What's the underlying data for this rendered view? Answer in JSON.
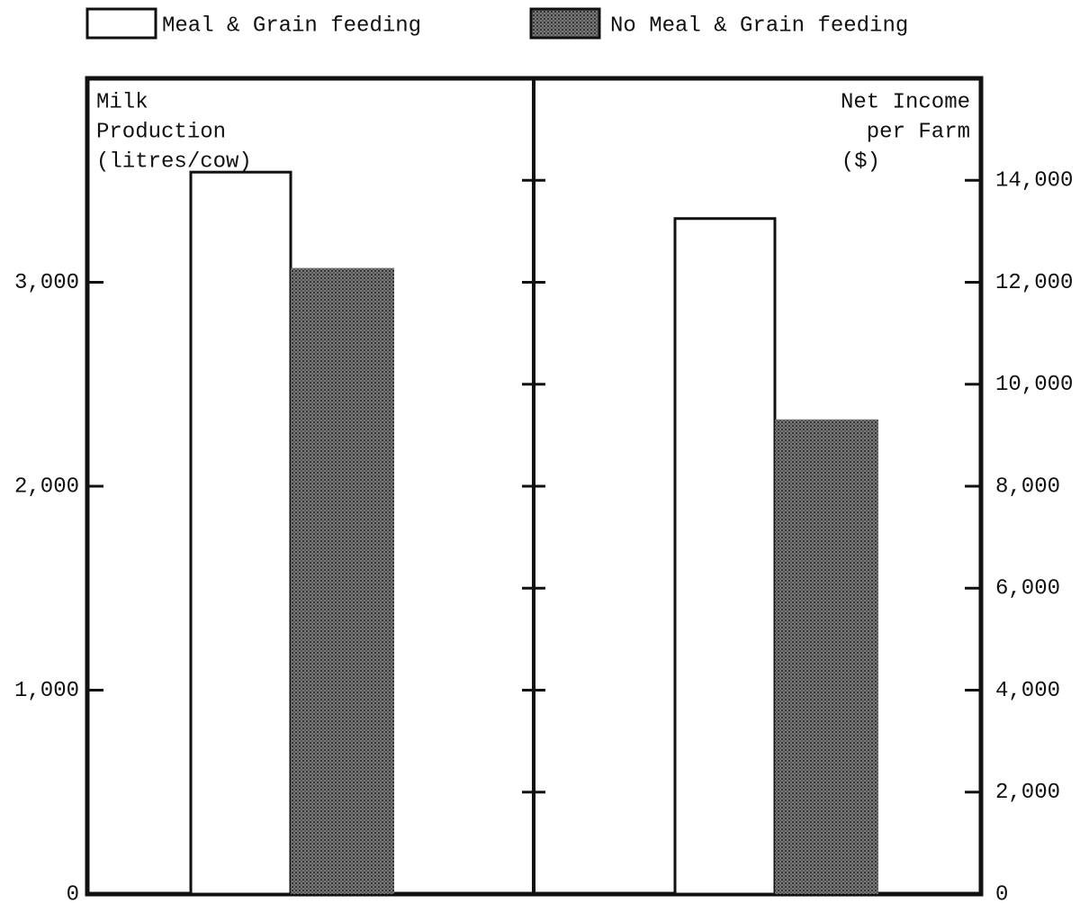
{
  "chart_data": {
    "type": "bar",
    "series": [
      {
        "name": "Meal & Grain feeding",
        "color": "#ffffff"
      },
      {
        "name": "No Meal & Grain feeding",
        "color": "#4d4d4d"
      }
    ],
    "panels": [
      {
        "ylabel": [
          "Milk",
          "Production",
          "(litres/cow)"
        ],
        "side": "left",
        "ylim": [
          0,
          4000
        ],
        "yticks": [
          0,
          {
            "value": 1000,
            "label": "1,000"
          },
          {
            "value": 2000,
            "label": "2,000"
          },
          {
            "value": 3000,
            "label": "3,000"
          }
        ],
        "values": [
          3540,
          3070
        ]
      },
      {
        "ylabel": [
          "Net Income",
          "per Farm",
          "($)"
        ],
        "side": "right",
        "ylim": [
          0,
          16000
        ],
        "yticks": [
          0,
          {
            "value": 2000,
            "label": "2,000"
          },
          {
            "value": 4000,
            "label": "4,000"
          },
          {
            "value": 6000,
            "label": "6,000"
          },
          {
            "value": 8000,
            "label": "8,000"
          },
          {
            "value": 10000,
            "label": "10,000"
          },
          {
            "value": 12000,
            "label": "12,000"
          },
          {
            "value": 14000,
            "label": "14,000"
          }
        ],
        "values": [
          13250,
          9310
        ]
      }
    ]
  }
}
